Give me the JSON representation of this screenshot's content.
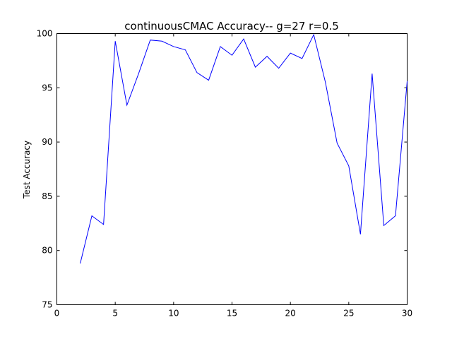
{
  "chart_data": {
    "type": "line",
    "title": "continuousCMAC Accuracy-- g=27 r=0.5",
    "xlabel": "",
    "ylabel": "Test Accuracy",
    "xlim": [
      0,
      30
    ],
    "ylim": [
      75,
      100
    ],
    "xticks": [
      0,
      5,
      10,
      15,
      20,
      25,
      30
    ],
    "yticks": [
      75,
      80,
      85,
      90,
      95,
      100
    ],
    "grid": false,
    "series": [
      {
        "name": "accuracy",
        "color": "#0000ff",
        "x": [
          2,
          3,
          4,
          5,
          6,
          7,
          8,
          9,
          10,
          11,
          12,
          13,
          14,
          15,
          16,
          17,
          18,
          19,
          20,
          21,
          22,
          23,
          24,
          25,
          26,
          27,
          28,
          29,
          30
        ],
        "y": [
          78.8,
          83.2,
          82.4,
          99.3,
          93.4,
          96.3,
          99.4,
          99.3,
          98.8,
          98.5,
          96.4,
          95.7,
          98.8,
          98.0,
          99.5,
          96.9,
          97.9,
          96.8,
          98.2,
          97.7,
          99.9,
          95.5,
          89.9,
          87.8,
          81.5,
          96.3,
          82.3,
          83.2,
          95.6
        ]
      }
    ]
  }
}
